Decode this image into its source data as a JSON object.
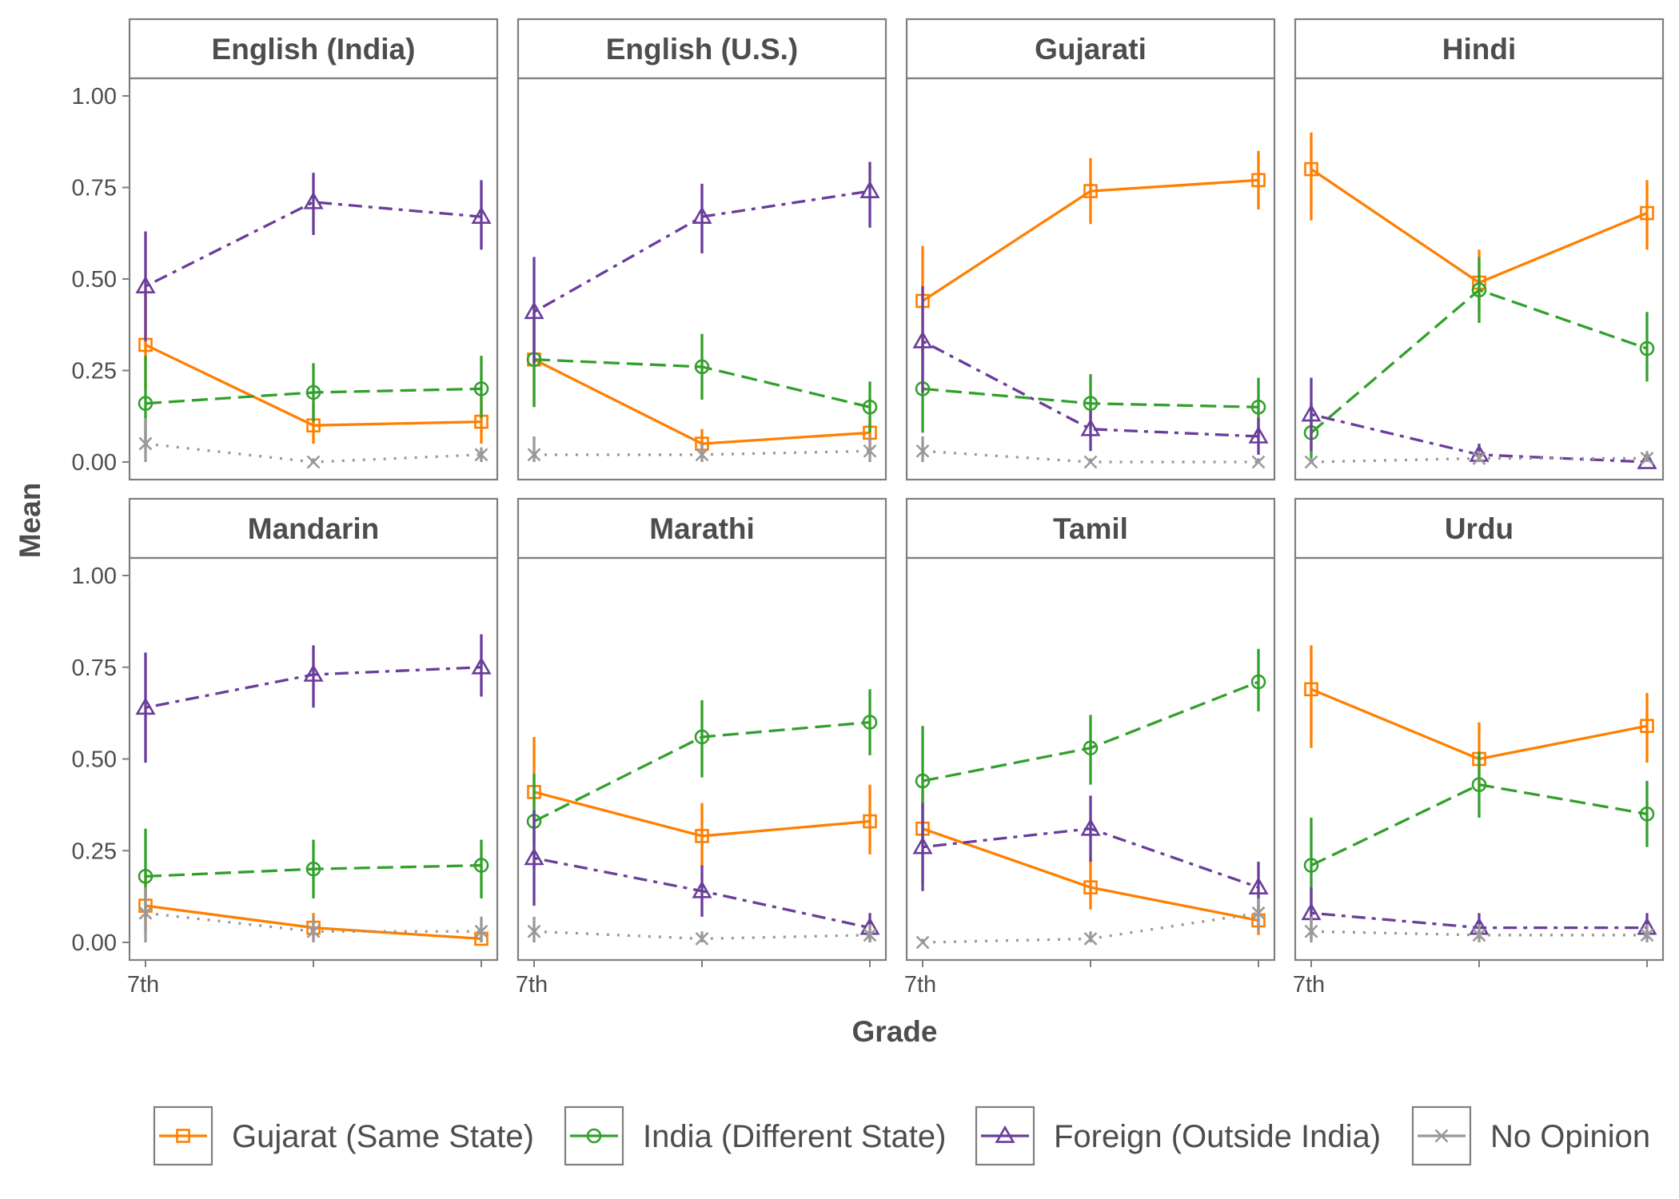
{
  "chart_data": {
    "type": "line",
    "facets": [
      "English (India)",
      "English (U.S.)",
      "Gujarati",
      "Hindi",
      "Mandarin",
      "Marathi",
      "Tamil",
      "Urdu"
    ],
    "x_tick_labels": [
      "7th"
    ],
    "xlabel": "Grade",
    "ylabel": "Mean",
    "ylim": [
      0,
      1
    ],
    "y_ticks": [
      "0.00",
      "0.25",
      "0.50",
      "0.75",
      "1.00"
    ],
    "legend_position": "bottom",
    "series": [
      {
        "name": "Gujarat (Same State)",
        "color": "#ff7f00",
        "marker": "square",
        "line": "solid"
      },
      {
        "name": "India (Different State)",
        "color": "#33a02c",
        "marker": "circle",
        "line": "dashed"
      },
      {
        "name": "Foreign (Outside India)",
        "color": "#6a3d9a",
        "marker": "triangle",
        "line": "dotdash"
      },
      {
        "name": "No Opinion",
        "color": "#999999",
        "marker": "x",
        "line": "dotted"
      }
    ],
    "panels": [
      {
        "facet": "English (India)",
        "values": [
          [
            0.32,
            0.1,
            0.11
          ],
          [
            0.16,
            0.19,
            0.2
          ],
          [
            0.48,
            0.71,
            0.67
          ],
          [
            0.05,
            0.0,
            0.02
          ]
        ],
        "lower": [
          [
            0.2,
            0.05,
            0.05
          ],
          [
            0.05,
            0.11,
            0.12
          ],
          [
            0.33,
            0.62,
            0.58
          ],
          [
            0.0,
            0.0,
            0.0
          ]
        ],
        "upper": [
          [
            0.47,
            0.16,
            0.18
          ],
          [
            0.29,
            0.27,
            0.29
          ],
          [
            0.63,
            0.79,
            0.77
          ],
          [
            0.12,
            0.01,
            0.04
          ]
        ]
      },
      {
        "facet": "English (U.S.)",
        "values": [
          [
            0.28,
            0.05,
            0.08
          ],
          [
            0.28,
            0.26,
            0.15
          ],
          [
            0.41,
            0.67,
            0.74
          ],
          [
            0.02,
            0.02,
            0.03
          ]
        ],
        "lower": [
          [
            0.15,
            0.01,
            0.03
          ],
          [
            0.15,
            0.17,
            0.08
          ],
          [
            0.27,
            0.57,
            0.64
          ],
          [
            0.0,
            0.0,
            0.0
          ]
        ],
        "upper": [
          [
            0.42,
            0.09,
            0.13
          ],
          [
            0.41,
            0.35,
            0.22
          ],
          [
            0.56,
            0.76,
            0.82
          ],
          [
            0.07,
            0.05,
            0.07
          ]
        ]
      },
      {
        "facet": "Gujarati",
        "values": [
          [
            0.44,
            0.74,
            0.77
          ],
          [
            0.2,
            0.16,
            0.15
          ],
          [
            0.33,
            0.09,
            0.07
          ],
          [
            0.03,
            0.0,
            0.0
          ]
        ],
        "lower": [
          [
            0.28,
            0.65,
            0.69
          ],
          [
            0.08,
            0.09,
            0.07
          ],
          [
            0.19,
            0.03,
            0.02
          ],
          [
            0.0,
            0.0,
            0.0
          ]
        ],
        "upper": [
          [
            0.59,
            0.83,
            0.85
          ],
          [
            0.33,
            0.24,
            0.23
          ],
          [
            0.48,
            0.14,
            0.12
          ],
          [
            0.07,
            0.01,
            0.01
          ]
        ]
      },
      {
        "facet": "Hindi",
        "values": [
          [
            0.8,
            0.49,
            0.68
          ],
          [
            0.08,
            0.47,
            0.31
          ],
          [
            0.13,
            0.02,
            0.0
          ],
          [
            0.0,
            0.01,
            0.01
          ]
        ],
        "lower": [
          [
            0.66,
            0.4,
            0.58
          ],
          [
            0.01,
            0.38,
            0.22
          ],
          [
            0.03,
            0.0,
            0.0
          ],
          [
            0.0,
            0.0,
            0.0
          ]
        ],
        "upper": [
          [
            0.9,
            0.58,
            0.77
          ],
          [
            0.16,
            0.56,
            0.41
          ],
          [
            0.23,
            0.05,
            0.01
          ],
          [
            0.01,
            0.03,
            0.03
          ]
        ]
      },
      {
        "facet": "Mandarin",
        "values": [
          [
            0.1,
            0.04,
            0.01
          ],
          [
            0.18,
            0.2,
            0.21
          ],
          [
            0.64,
            0.73,
            0.75
          ],
          [
            0.08,
            0.03,
            0.03
          ]
        ],
        "lower": [
          [
            0.03,
            0.01,
            0.0
          ],
          [
            0.06,
            0.12,
            0.12
          ],
          [
            0.49,
            0.64,
            0.67
          ],
          [
            0.0,
            0.0,
            0.0
          ]
        ],
        "upper": [
          [
            0.19,
            0.08,
            0.04
          ],
          [
            0.31,
            0.28,
            0.28
          ],
          [
            0.79,
            0.81,
            0.84
          ],
          [
            0.15,
            0.07,
            0.07
          ]
        ]
      },
      {
        "facet": "Marathi",
        "values": [
          [
            0.41,
            0.29,
            0.33
          ],
          [
            0.33,
            0.56,
            0.6
          ],
          [
            0.23,
            0.14,
            0.04
          ],
          [
            0.03,
            0.01,
            0.02
          ]
        ],
        "lower": [
          [
            0.27,
            0.2,
            0.24
          ],
          [
            0.2,
            0.45,
            0.51
          ],
          [
            0.1,
            0.07,
            0.0
          ],
          [
            0.0,
            0.0,
            0.0
          ]
        ],
        "upper": [
          [
            0.56,
            0.38,
            0.43
          ],
          [
            0.46,
            0.66,
            0.69
          ],
          [
            0.36,
            0.21,
            0.08
          ],
          [
            0.07,
            0.03,
            0.05
          ]
        ]
      },
      {
        "facet": "Tamil",
        "values": [
          [
            0.31,
            0.15,
            0.06
          ],
          [
            0.44,
            0.53,
            0.71
          ],
          [
            0.26,
            0.31,
            0.15
          ],
          [
            0.0,
            0.01,
            0.08
          ]
        ],
        "lower": [
          [
            0.16,
            0.09,
            0.02
          ],
          [
            0.28,
            0.43,
            0.63
          ],
          [
            0.14,
            0.22,
            0.08
          ],
          [
            0.0,
            0.0,
            0.03
          ]
        ],
        "upper": [
          [
            0.46,
            0.23,
            0.1
          ],
          [
            0.59,
            0.62,
            0.8
          ],
          [
            0.38,
            0.4,
            0.22
          ],
          [
            0.01,
            0.03,
            0.12
          ]
        ]
      },
      {
        "facet": "Urdu",
        "values": [
          [
            0.69,
            0.5,
            0.59
          ],
          [
            0.21,
            0.43,
            0.35
          ],
          [
            0.08,
            0.04,
            0.04
          ],
          [
            0.03,
            0.02,
            0.02
          ]
        ],
        "lower": [
          [
            0.53,
            0.41,
            0.49
          ],
          [
            0.08,
            0.34,
            0.26
          ],
          [
            0.01,
            0.01,
            0.01
          ],
          [
            0.0,
            0.0,
            0.0
          ]
        ],
        "upper": [
          [
            0.81,
            0.6,
            0.68
          ],
          [
            0.34,
            0.52,
            0.44
          ],
          [
            0.15,
            0.08,
            0.08
          ],
          [
            0.07,
            0.05,
            0.05
          ]
        ]
      }
    ]
  }
}
